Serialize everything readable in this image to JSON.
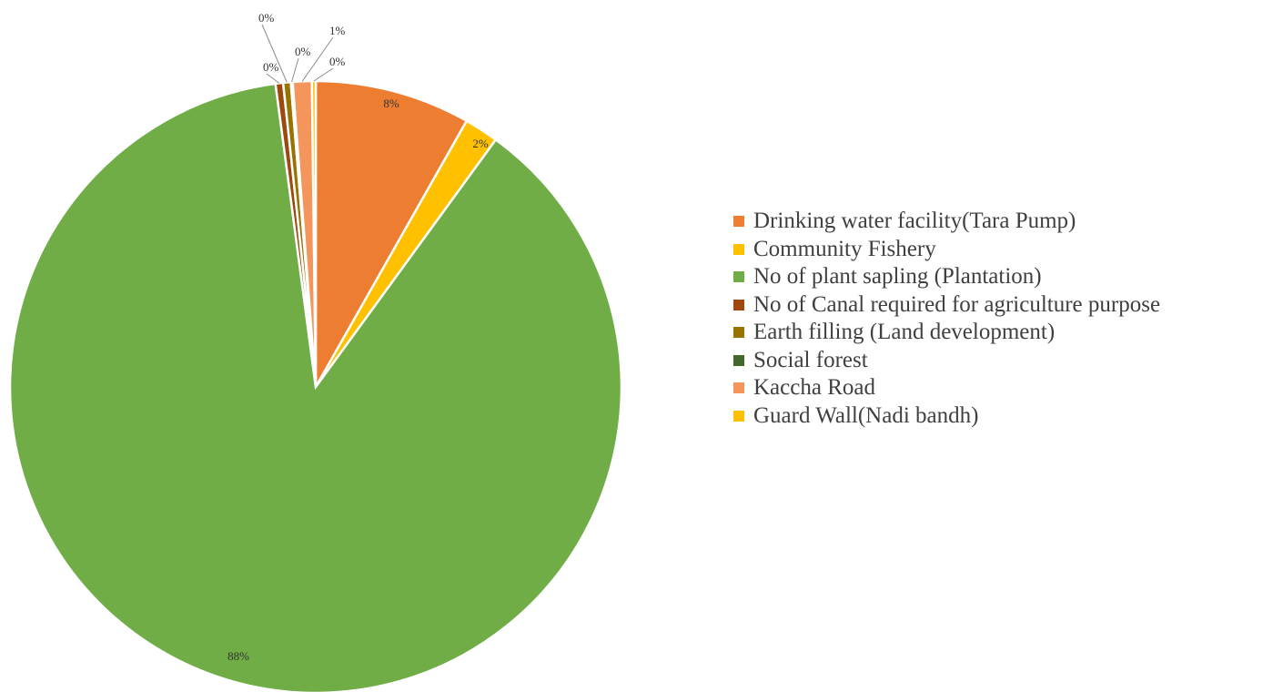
{
  "chart_data": {
    "type": "pie",
    "title": "",
    "legend_position": "right",
    "start_angle_deg": 0,
    "direction": "clockwise",
    "slices": [
      {
        "name": "Drinking water facility(Tara Pump)",
        "value": 8.2,
        "label": "8%",
        "color": "#ED7D31"
      },
      {
        "name": "Community Fishery",
        "value": 1.8,
        "label": "2%",
        "color": "#FFC000"
      },
      {
        "name": "No of plant sapling (Plantation)",
        "value": 87.7,
        "label": "88%",
        "color": "#70AD47"
      },
      {
        "name": "No of Canal required for agriculture purpose",
        "value": 0.4,
        "label": "0%",
        "color": "#9E480E"
      },
      {
        "name": "Earth filling (Land development)",
        "value": 0.4,
        "label": "0%",
        "color": "#997300"
      },
      {
        "name": "Social forest",
        "value": 0.1,
        "label": "0%",
        "color": "#43682B"
      },
      {
        "name": "Kaccha Road",
        "value": 1.0,
        "label": "1%",
        "color": "#F4955C"
      },
      {
        "name": "Guard Wall(Nadi bandh)",
        "value": 0.2,
        "label": "0%",
        "color": "#FFC000"
      }
    ]
  }
}
